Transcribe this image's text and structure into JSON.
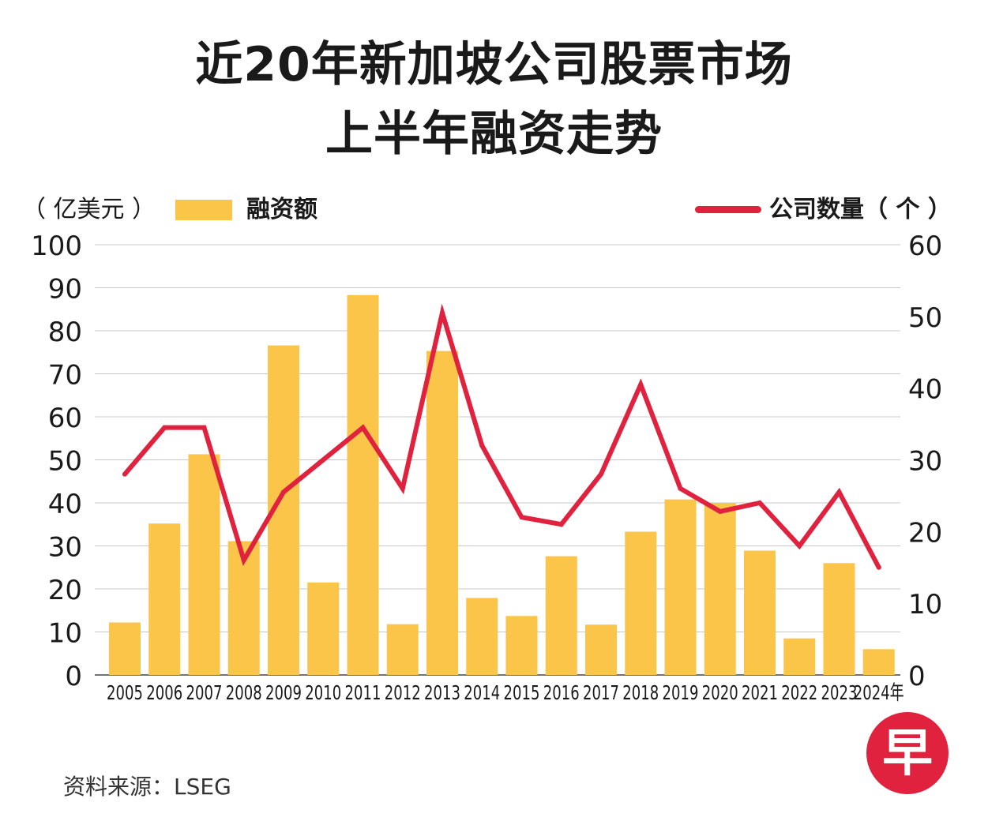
{
  "title_line1": "近20年新加坡公司股票市场",
  "title_line2": "上半年融资走势",
  "legend": {
    "left_unit": "（ 亿美元 ）",
    "bar_label": "融资额",
    "line_label": "公司数量（ 个 ）"
  },
  "colors": {
    "bar": "#FBC54A",
    "line": "#E0223E",
    "grid": "#c8c8c8",
    "text": "#1a1a1a",
    "logo": "#E0223E"
  },
  "source": "资料来源：LSEG",
  "logo": {
    "char": "早",
    "icon": "zaobao-logo-icon"
  },
  "chart_data": {
    "type": "bar+line",
    "categories": [
      "2005",
      "2006",
      "2007",
      "2008",
      "2009",
      "2010",
      "2011",
      "2012",
      "2013",
      "2014",
      "2015",
      "2016",
      "2017",
      "2018",
      "2019",
      "2020",
      "2021",
      "2022",
      "2023",
      "2024年"
    ],
    "series": [
      {
        "name": "融资额",
        "type": "bar",
        "axis": "left",
        "values": [
          12.2,
          35.2,
          51.3,
          31.1,
          76.6,
          21.5,
          88.3,
          11.8,
          75.3,
          17.9,
          13.7,
          27.6,
          11.7,
          33.3,
          40.8,
          40.0,
          28.9,
          8.5,
          26.0,
          6.0
        ]
      },
      {
        "name": "公司数量",
        "type": "line",
        "axis": "right",
        "values": [
          28,
          34.5,
          34.5,
          16,
          25.5,
          30,
          34.5,
          26,
          50.5,
          32,
          22,
          21,
          28,
          40.5,
          26,
          22.8,
          24,
          18,
          25.5,
          15
        ]
      }
    ],
    "y_left": {
      "min": 0,
      "max": 100,
      "ticks": [
        "0",
        "10",
        "20",
        "30",
        "40",
        "50",
        "60",
        "70",
        "80",
        "90",
        "100"
      ]
    },
    "y_right": {
      "min": 0,
      "max": 60,
      "ticks": [
        "0",
        "10",
        "20",
        "30",
        "40",
        "50",
        "60"
      ]
    },
    "grid": true
  }
}
